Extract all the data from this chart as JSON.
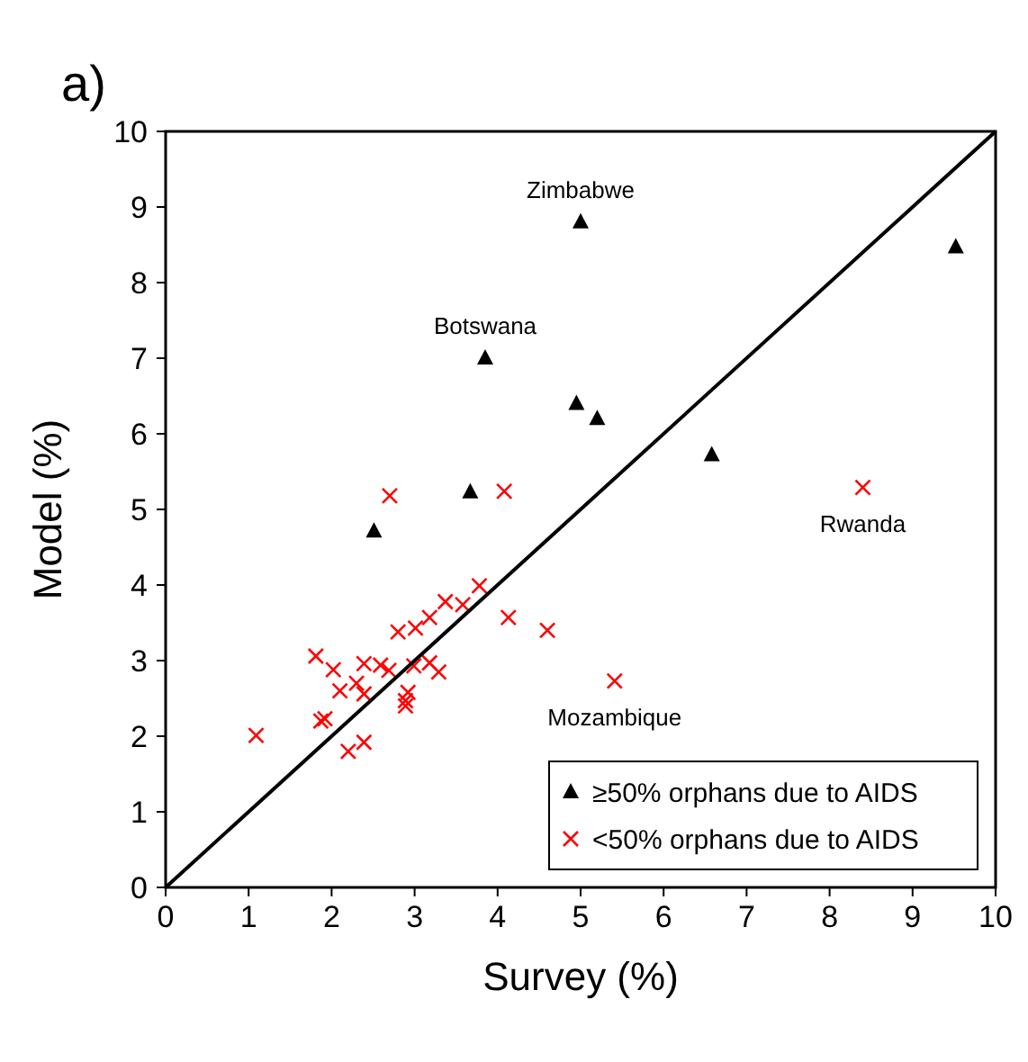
{
  "chart_data": {
    "type": "scatter",
    "xlabel": "Survey (%)",
    "ylabel": "Model (%)",
    "xlim": [
      0,
      10
    ],
    "ylim": [
      0,
      10
    ],
    "xticks": [
      0,
      1,
      2,
      3,
      4,
      5,
      6,
      7,
      8,
      9,
      10
    ],
    "yticks": [
      0,
      1,
      2,
      3,
      4,
      5,
      6,
      7,
      8,
      9,
      10
    ],
    "grid": false,
    "legend": "bottom right",
    "series": [
      {
        "name": "≥50% orphans due to AIDS",
        "color": "#000000",
        "marker": "triangle",
        "x": [
          5.0,
          3.85,
          9.52,
          4.95,
          5.2,
          6.58,
          3.67,
          2.51
        ],
        "values": [
          8.8,
          7.0,
          8.47,
          6.4,
          6.2,
          5.72,
          5.23,
          4.71
        ]
      },
      {
        "name": "<50% orphans due to AIDS",
        "color": "#ff0000",
        "marker": "cross",
        "x": [
          2.7,
          4.08,
          3.78,
          3.37,
          3.58,
          3.18,
          3.01,
          2.8,
          4.13,
          4.6,
          5.41,
          1.81,
          2.02,
          2.39,
          2.59,
          2.69,
          2.99,
          3.18,
          3.29,
          2.1,
          2.3,
          2.39,
          2.92,
          2.89,
          2.89,
          1.87,
          1.92,
          1.09,
          2.2,
          2.39,
          8.4
        ],
        "values": [
          5.18,
          5.24,
          3.99,
          3.78,
          3.74,
          3.57,
          3.43,
          3.38,
          3.57,
          3.4,
          2.73,
          3.06,
          2.88,
          2.96,
          2.94,
          2.87,
          2.93,
          2.97,
          2.85,
          2.6,
          2.7,
          2.56,
          2.58,
          2.47,
          2.4,
          2.2,
          2.23,
          2.01,
          1.8,
          1.92,
          5.29
        ]
      },
      {
        "type": "line",
        "color": "#000000",
        "marker": "none",
        "x": [
          0,
          10
        ],
        "values": [
          0,
          10
        ]
      }
    ],
    "annotations": [
      "a)",
      {
        "text": "Zimbabwe",
        "x": 5.0,
        "y": 8.8
      },
      {
        "text": "Botswana",
        "x": 3.85,
        "y": 7.0
      },
      {
        "text": "Rwanda",
        "x": 8.4,
        "y": 5.29
      },
      {
        "text": "Mozambique",
        "x": 5.41,
        "y": 2.73
      }
    ]
  }
}
